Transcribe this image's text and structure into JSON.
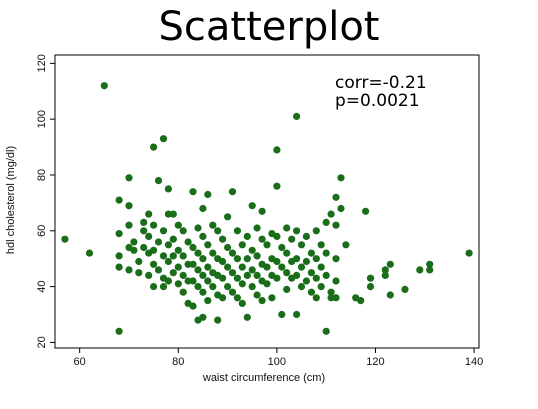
{
  "chart_data": {
    "type": "scatter",
    "title": "Scatterplot",
    "xlabel": "waist circumference (cm)",
    "ylabel": "hdl cholesterol (mg/dl)",
    "xlim": [
      55,
      141
    ],
    "ylim": [
      18,
      123
    ],
    "xticks": [
      60,
      80,
      100,
      120,
      140
    ],
    "yticks": [
      20,
      40,
      60,
      80,
      100,
      120
    ],
    "grid": false,
    "marker_color": "#1a6e1a",
    "annotations": [
      "corr=-0.21",
      "p=0.0021"
    ],
    "points": [
      [
        57,
        57
      ],
      [
        62,
        52
      ],
      [
        65,
        112
      ],
      [
        68,
        24
      ],
      [
        68,
        47
      ],
      [
        68,
        51
      ],
      [
        68,
        59
      ],
      [
        68,
        71
      ],
      [
        70,
        79
      ],
      [
        70,
        69
      ],
      [
        70,
        62
      ],
      [
        70,
        54
      ],
      [
        70,
        46
      ],
      [
        71,
        56
      ],
      [
        71,
        53
      ],
      [
        72,
        49
      ],
      [
        72,
        45
      ],
      [
        73,
        63
      ],
      [
        73,
        60
      ],
      [
        73,
        54
      ],
      [
        74,
        66
      ],
      [
        74,
        58
      ],
      [
        74,
        52
      ],
      [
        74,
        44
      ],
      [
        75,
        90
      ],
      [
        75,
        62
      ],
      [
        75,
        53
      ],
      [
        75,
        48
      ],
      [
        75,
        40
      ],
      [
        76,
        78
      ],
      [
        76,
        56
      ],
      [
        76,
        46
      ],
      [
        77,
        93
      ],
      [
        77,
        60
      ],
      [
        77,
        51
      ],
      [
        77,
        43
      ],
      [
        77,
        40
      ],
      [
        78,
        75
      ],
      [
        78,
        66
      ],
      [
        78,
        55
      ],
      [
        78,
        49
      ],
      [
        78,
        42
      ],
      [
        79,
        66
      ],
      [
        79,
        57
      ],
      [
        79,
        51
      ],
      [
        79,
        45
      ],
      [
        80,
        62
      ],
      [
        80,
        53
      ],
      [
        80,
        47
      ],
      [
        80,
        41
      ],
      [
        81,
        60
      ],
      [
        81,
        51
      ],
      [
        81,
        44
      ],
      [
        81,
        38
      ],
      [
        82,
        56
      ],
      [
        82,
        48
      ],
      [
        82,
        42
      ],
      [
        82,
        34
      ],
      [
        83,
        74
      ],
      [
        83,
        54
      ],
      [
        83,
        48
      ],
      [
        83,
        42
      ],
      [
        83,
        33
      ],
      [
        84,
        61
      ],
      [
        84,
        52
      ],
      [
        84,
        46
      ],
      [
        84,
        40
      ],
      [
        84,
        28
      ],
      [
        85,
        68
      ],
      [
        85,
        58
      ],
      [
        85,
        50
      ],
      [
        85,
        44
      ],
      [
        85,
        38
      ],
      [
        85,
        29
      ],
      [
        86,
        73
      ],
      [
        86,
        55
      ],
      [
        86,
        47
      ],
      [
        86,
        42
      ],
      [
        86,
        35
      ],
      [
        87,
        62
      ],
      [
        87,
        52
      ],
      [
        87,
        45
      ],
      [
        87,
        40
      ],
      [
        88,
        60
      ],
      [
        88,
        50
      ],
      [
        88,
        44
      ],
      [
        88,
        37
      ],
      [
        88,
        28
      ],
      [
        89,
        57
      ],
      [
        89,
        49
      ],
      [
        89,
        43
      ],
      [
        89,
        36
      ],
      [
        90,
        65
      ],
      [
        90,
        54
      ],
      [
        90,
        47
      ],
      [
        90,
        40
      ],
      [
        91,
        74
      ],
      [
        91,
        52
      ],
      [
        91,
        45
      ],
      [
        91,
        38
      ],
      [
        92,
        60
      ],
      [
        92,
        50
      ],
      [
        92,
        43
      ],
      [
        92,
        36
      ],
      [
        93,
        55
      ],
      [
        93,
        47
      ],
      [
        93,
        41
      ],
      [
        93,
        34
      ],
      [
        94,
        58
      ],
      [
        94,
        50
      ],
      [
        94,
        44
      ],
      [
        94,
        29
      ],
      [
        95,
        69
      ],
      [
        95,
        53
      ],
      [
        95,
        46
      ],
      [
        95,
        40
      ],
      [
        96,
        61
      ],
      [
        96,
        51
      ],
      [
        96,
        44
      ],
      [
        96,
        37
      ],
      [
        97,
        67
      ],
      [
        97,
        57
      ],
      [
        97,
        48
      ],
      [
        97,
        42
      ],
      [
        97,
        35
      ],
      [
        98,
        55
      ],
      [
        98,
        47
      ],
      [
        98,
        41
      ],
      [
        99,
        59
      ],
      [
        99,
        50
      ],
      [
        99,
        44
      ],
      [
        99,
        36
      ],
      [
        100,
        89
      ],
      [
        100,
        76
      ],
      [
        100,
        58
      ],
      [
        100,
        49
      ],
      [
        100,
        43
      ],
      [
        101,
        54
      ],
      [
        101,
        47
      ],
      [
        101,
        30
      ],
      [
        102,
        61
      ],
      [
        102,
        52
      ],
      [
        102,
        45
      ],
      [
        102,
        39
      ],
      [
        103,
        57
      ],
      [
        103,
        49
      ],
      [
        103,
        43
      ],
      [
        104,
        101
      ],
      [
        104,
        60
      ],
      [
        104,
        50
      ],
      [
        104,
        44
      ],
      [
        104,
        30
      ],
      [
        105,
        55
      ],
      [
        105,
        47
      ],
      [
        105,
        40
      ],
      [
        106,
        58
      ],
      [
        106,
        49
      ],
      [
        106,
        42
      ],
      [
        107,
        52
      ],
      [
        107,
        45
      ],
      [
        107,
        38
      ],
      [
        108,
        60
      ],
      [
        108,
        50
      ],
      [
        108,
        43
      ],
      [
        108,
        36
      ],
      [
        109,
        55
      ],
      [
        109,
        47
      ],
      [
        109,
        40
      ],
      [
        110,
        63
      ],
      [
        110,
        52
      ],
      [
        110,
        44
      ],
      [
        110,
        24
      ],
      [
        111,
        66
      ],
      [
        111,
        38
      ],
      [
        111,
        36
      ],
      [
        112,
        72
      ],
      [
        112,
        62
      ],
      [
        112,
        50
      ],
      [
        112,
        42
      ],
      [
        112,
        36
      ],
      [
        113,
        79
      ],
      [
        113,
        68
      ],
      [
        114,
        55
      ],
      [
        116,
        36
      ],
      [
        117,
        35
      ],
      [
        118,
        67
      ],
      [
        119,
        43
      ],
      [
        119,
        40
      ],
      [
        122,
        46
      ],
      [
        122,
        44
      ],
      [
        123,
        48
      ],
      [
        123,
        37
      ],
      [
        126,
        39
      ],
      [
        129,
        46
      ],
      [
        131,
        48
      ],
      [
        131,
        46
      ],
      [
        139,
        52
      ]
    ]
  }
}
